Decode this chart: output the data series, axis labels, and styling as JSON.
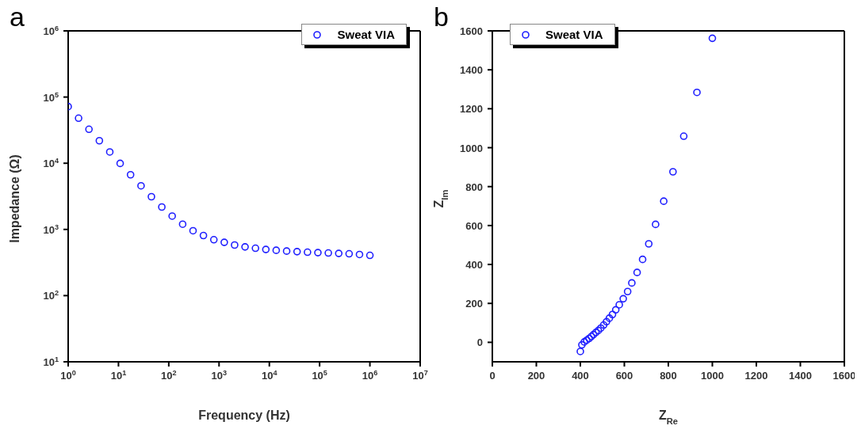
{
  "chart_data": [
    {
      "type": "scatter",
      "title": "a",
      "xlabel": "Frequency (Hz)",
      "ylabel": "Impedance (Ω)",
      "log": "xy",
      "marker": "circle",
      "legend": "top right",
      "xlim": [
        1,
        10000000
      ],
      "ylim": [
        10,
        1000000
      ],
      "xticks": [
        {
          "value": 1,
          "label": "10$^{0}$"
        },
        {
          "value": 10,
          "label": "10$^{1}$"
        },
        {
          "value": 100,
          "label": "10$^{2}$"
        },
        {
          "value": 1000,
          "label": "10$^{3}$"
        },
        {
          "value": 10000,
          "label": "10$^{4}$"
        },
        {
          "value": 100000,
          "label": "10$^{5}$"
        },
        {
          "value": 1000000,
          "label": "10$^{6}$"
        },
        {
          "value": 10000000,
          "label": "10$^{7}$"
        }
      ],
      "yticks": [
        {
          "value": 10,
          "label": "10$^{1}$"
        },
        {
          "value": 100,
          "label": "10$^{2}$"
        },
        {
          "value": 1000,
          "label": "10$^{3}$"
        },
        {
          "value": 10000,
          "label": "10$^{4}$"
        },
        {
          "value": 100000,
          "label": "10$^{5}$"
        },
        {
          "value": 1000000,
          "label": "10$^{6}$"
        }
      ],
      "x": [
        1,
        1.61,
        2.59,
        4.17,
        6.72,
        10.8,
        17.4,
        28.1,
        45.2,
        72.8,
        117,
        189,
        304,
        489,
        788,
        1270,
        2040,
        3290,
        5300,
        8530,
        13700,
        22100,
        35600,
        57400,
        92400,
        149000,
        240000,
        386000,
        621000,
        1000000
      ],
      "series": [
        {
          "name": "Sweat VIA",
          "color": "#1f1fff",
          "values": [
            71800,
            47900,
            32600,
            21900,
            14800,
            9950,
            6700,
            4560,
            3120,
            2180,
            1590,
            1200,
            955,
            809,
            699,
            638,
            581,
            545,
            520,
            498,
            484,
            471,
            462,
            453,
            446,
            441,
            434,
            429,
            418,
            406
          ]
        }
      ]
    },
    {
      "type": "scatter",
      "title": "b",
      "xlabel": "Z$_{Re}$",
      "ylabel": "Z$_{Im}$",
      "marker": "circle",
      "legend": "top left",
      "xlim": [
        0,
        1600
      ],
      "ylim": [
        -100,
        1600
      ],
      "xticks": [
        0,
        200,
        400,
        600,
        800,
        1000,
        1200,
        1400,
        1600
      ],
      "yticks": [
        0,
        200,
        400,
        600,
        800,
        1000,
        1200,
        1400,
        1600
      ],
      "x": [
        1000,
        930,
        870,
        821,
        779,
        742,
        711,
        683,
        658,
        634,
        615,
        595,
        577,
        561,
        546,
        532,
        519,
        506,
        493,
        482,
        471,
        460,
        450,
        440,
        429,
        418,
        407,
        400
      ],
      "series": [
        {
          "name": "Sweat VIA",
          "color": "#1f1fff",
          "values": [
            1562,
            1284,
            1059,
            876,
            725,
            606,
            506,
            426,
            359,
            305,
            261,
            224,
            193,
            167,
            143,
            124,
            106,
            89,
            73,
            61,
            51,
            40,
            30,
            20,
            11,
            2,
            -13,
            -47
          ]
        }
      ]
    }
  ]
}
